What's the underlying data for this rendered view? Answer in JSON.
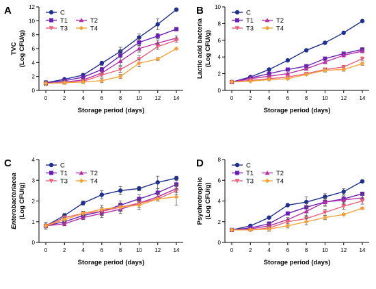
{
  "colors": {
    "C": "#1e2f8f",
    "T1": "#6a1fb3",
    "T2": "#b62fa6",
    "T3": "#e8607a",
    "T4": "#f5a23a"
  },
  "chart_data": [
    {
      "panel": "A",
      "type": "line",
      "ylabel": "TVC",
      "ylabel_unit": "(Log CFU/g)",
      "ylabel_italic": false,
      "xlabel": "Storage period (days)",
      "x": [
        0,
        2,
        4,
        6,
        8,
        10,
        12,
        14
      ],
      "ylim": [
        0,
        12
      ],
      "yticks": [
        0,
        2,
        4,
        6,
        8,
        10,
        12
      ],
      "grid": false,
      "legend": "top-left",
      "series": [
        {
          "name": "C",
          "marker": "circle",
          "values": [
            1.1,
            1.6,
            2.2,
            3.9,
            5.6,
            7.6,
            9.5,
            11.6
          ],
          "errors": [
            0.3,
            0.2,
            0.2,
            0.3,
            0.6,
            0.5,
            0.8,
            0.1
          ]
        },
        {
          "name": "T1",
          "marker": "square",
          "values": [
            1.1,
            1.4,
            1.9,
            3.0,
            5.0,
            6.9,
            7.8,
            8.8
          ],
          "errors": [
            0.3,
            0.2,
            0.2,
            0.3,
            0.8,
            0.5,
            0.4,
            0.1
          ]
        },
        {
          "name": "T2",
          "marker": "triangle-up",
          "values": [
            1.0,
            1.2,
            1.5,
            2.5,
            4.2,
            6.0,
            6.8,
            7.5
          ],
          "errors": [
            0.3,
            0.2,
            0.2,
            0.3,
            0.6,
            0.5,
            0.4,
            0.3
          ]
        },
        {
          "name": "T3",
          "marker": "triangle-down",
          "values": [
            1.0,
            1.1,
            1.3,
            2.2,
            3.0,
            4.5,
            6.3,
            7.2
          ],
          "errors": [
            0.2,
            0.2,
            0.2,
            0.3,
            0.4,
            0.5,
            0.4,
            0.3
          ]
        },
        {
          "name": "T4",
          "marker": "diamond",
          "values": [
            1.0,
            1.1,
            1.2,
            1.4,
            2.0,
            3.9,
            4.5,
            6.0
          ],
          "errors": [
            0.2,
            0.2,
            0.2,
            0.3,
            0.3,
            0.5,
            0.2,
            0.1
          ]
        }
      ]
    },
    {
      "panel": "B",
      "type": "line",
      "ylabel": "Lactic acid bacteria",
      "ylabel_unit": "(Log CFU/g)",
      "ylabel_italic": false,
      "xlabel": "Storage period (days)",
      "x": [
        0,
        2,
        4,
        6,
        8,
        10,
        12,
        14
      ],
      "ylim": [
        0,
        10
      ],
      "yticks": [
        0,
        2,
        4,
        6,
        8,
        10
      ],
      "grid": false,
      "legend": "top-left",
      "series": [
        {
          "name": "C",
          "marker": "circle",
          "values": [
            1.0,
            1.6,
            2.5,
            3.6,
            4.8,
            5.7,
            6.9,
            8.3
          ],
          "errors": [
            0.1,
            0.1,
            0.1,
            0.1,
            0.1,
            0.1,
            0.1,
            0.1
          ]
        },
        {
          "name": "T1",
          "marker": "square",
          "values": [
            1.0,
            1.5,
            2.0,
            2.5,
            2.9,
            3.8,
            4.4,
            4.9
          ],
          "errors": [
            0.1,
            0.1,
            0.1,
            0.1,
            0.1,
            0.2,
            0.2,
            0.2
          ]
        },
        {
          "name": "T2",
          "marker": "triangle-up",
          "values": [
            1.0,
            1.4,
            1.7,
            2.0,
            2.6,
            3.4,
            4.2,
            4.7
          ],
          "errors": [
            0.1,
            0.1,
            0.1,
            0.1,
            0.2,
            0.2,
            0.2,
            0.2
          ]
        },
        {
          "name": "T3",
          "marker": "triangle-down",
          "values": [
            1.0,
            1.2,
            1.4,
            1.6,
            2.0,
            2.5,
            2.8,
            3.8
          ],
          "errors": [
            0.1,
            0.1,
            0.1,
            0.1,
            0.1,
            0.2,
            0.2,
            0.2
          ]
        },
        {
          "name": "T4",
          "marker": "diamond",
          "values": [
            1.0,
            1.1,
            1.3,
            1.4,
            1.9,
            2.4,
            2.5,
            3.2
          ],
          "errors": [
            0.1,
            0.1,
            0.1,
            0.1,
            0.1,
            0.2,
            0.2,
            0.2
          ]
        }
      ]
    },
    {
      "panel": "C",
      "type": "line",
      "ylabel": "Enterobacteriacea",
      "ylabel_unit": "(Log CFU/g)",
      "ylabel_italic": true,
      "xlabel": "Storage period (days)",
      "x": [
        0,
        2,
        4,
        6,
        8,
        10,
        12,
        14
      ],
      "ylim": [
        0,
        4
      ],
      "yticks": [
        0,
        1,
        2,
        3,
        4
      ],
      "grid": false,
      "legend": "top-left",
      "series": [
        {
          "name": "C",
          "marker": "circle",
          "values": [
            0.8,
            1.3,
            1.9,
            2.3,
            2.5,
            2.6,
            2.9,
            3.1
          ],
          "errors": [
            0.15,
            0.1,
            0.1,
            0.2,
            0.2,
            0.1,
            0.3,
            0.1
          ]
        },
        {
          "name": "T1",
          "marker": "square",
          "values": [
            0.8,
            1.0,
            1.3,
            1.5,
            1.8,
            2.1,
            2.4,
            2.8
          ],
          "errors": [
            0.15,
            0.1,
            0.1,
            0.2,
            0.2,
            0.2,
            0.2,
            0.2
          ]
        },
        {
          "name": "T2",
          "marker": "triangle-up",
          "values": [
            0.8,
            0.9,
            1.2,
            1.4,
            1.6,
            1.9,
            2.2,
            2.6
          ],
          "errors": [
            0.15,
            0.1,
            0.1,
            0.2,
            0.2,
            0.1,
            0.2,
            0.2
          ]
        },
        {
          "name": "T3",
          "marker": "triangle-down",
          "values": [
            0.8,
            1.2,
            1.4,
            1.5,
            1.7,
            1.9,
            2.1,
            2.5
          ],
          "errors": [
            0.15,
            0.1,
            0.1,
            0.2,
            0.2,
            0.2,
            0.1,
            0.2
          ]
        },
        {
          "name": "T4",
          "marker": "diamond",
          "values": [
            0.8,
            1.1,
            1.4,
            1.6,
            1.7,
            1.8,
            2.1,
            2.2
          ],
          "errors": [
            0.15,
            0.1,
            0.1,
            0.2,
            0.2,
            0.2,
            0.1,
            0.4
          ]
        }
      ]
    },
    {
      "panel": "D",
      "type": "line",
      "ylabel": "Psychrotrophic",
      "ylabel_unit": "(Log CFU/g)",
      "ylabel_italic": false,
      "xlabel": "Storage period (days)",
      "x": [
        0,
        2,
        4,
        6,
        8,
        10,
        12,
        14
      ],
      "ylim": [
        0,
        8
      ],
      "yticks": [
        0,
        2,
        4,
        6,
        8
      ],
      "grid": false,
      "legend": "top-left",
      "series": [
        {
          "name": "C",
          "marker": "circle",
          "values": [
            1.2,
            1.6,
            2.4,
            3.6,
            3.9,
            4.4,
            4.9,
            5.9
          ],
          "errors": [
            0.1,
            0.1,
            0.1,
            0.1,
            0.5,
            0.3,
            0.3,
            0.1
          ]
        },
        {
          "name": "T1",
          "marker": "square",
          "values": [
            1.2,
            1.4,
            1.8,
            2.8,
            3.4,
            3.9,
            4.2,
            4.7
          ],
          "errors": [
            0.1,
            0.1,
            0.2,
            0.1,
            0.4,
            0.3,
            0.3,
            0.1
          ]
        },
        {
          "name": "T2",
          "marker": "triangle-up",
          "values": [
            1.2,
            1.3,
            1.6,
            2.2,
            3.0,
            3.9,
            4.1,
            4.3
          ],
          "errors": [
            0.1,
            0.1,
            0.2,
            0.2,
            0.5,
            0.4,
            0.4,
            0.3
          ]
        },
        {
          "name": "T3",
          "marker": "triangle-down",
          "values": [
            1.2,
            1.2,
            1.4,
            2.0,
            2.3,
            2.9,
            3.5,
            4.0
          ],
          "errors": [
            0.1,
            0.1,
            0.2,
            0.2,
            0.3,
            0.3,
            0.3,
            0.3
          ]
        },
        {
          "name": "T4",
          "marker": "diamond",
          "values": [
            1.2,
            1.2,
            1.3,
            1.6,
            2.0,
            2.4,
            2.7,
            3.3
          ],
          "errors": [
            0.1,
            0.1,
            0.2,
            0.2,
            0.3,
            0.2,
            0.1,
            0.1
          ]
        }
      ]
    }
  ]
}
